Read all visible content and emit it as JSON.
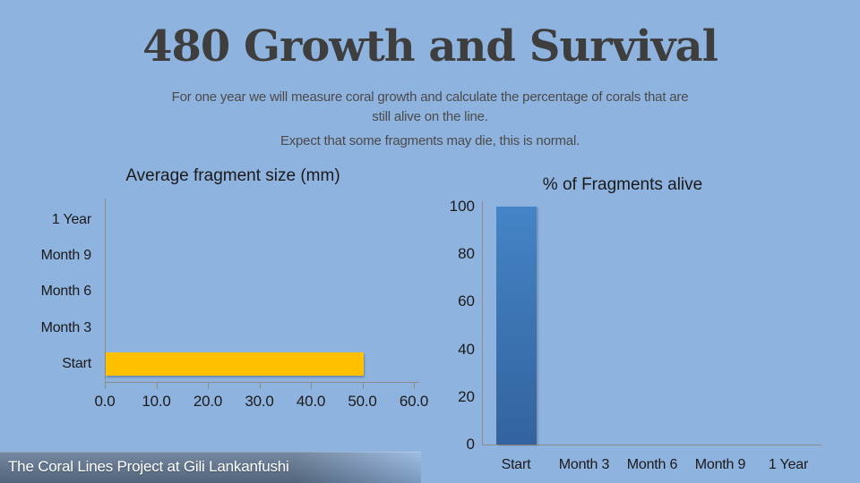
{
  "slide": {
    "title": "480 Growth and Survival",
    "subtitle": [
      "For one year we will measure coral growth and calculate the percentage of corals that are",
      "still alive on the line.",
      "Expect that some fragments may die, this is normal."
    ],
    "footer": "The Coral Lines Project at Gili Lankanfushi",
    "colors": {
      "background": "#8FB3DF",
      "title_text": "#3E3E3E",
      "body_text": "#4A4A4A",
      "banner": "#5F7590",
      "axis": "#8C8C8C"
    }
  },
  "chart_data": [
    {
      "id": "growth",
      "type": "bar",
      "orientation": "horizontal",
      "title": "Average fragment size (mm)",
      "categories": [
        "Start",
        "Month 3",
        "Month 6",
        "Month 9",
        "1 Year"
      ],
      "values": [
        50,
        0,
        0,
        0,
        0
      ],
      "category_order_top_to_bottom": [
        "1 Year",
        "Month 9",
        "Month 6",
        "Month 3",
        "Start"
      ],
      "value_axis": {
        "min": 0,
        "max": 60,
        "step": 10,
        "tick_labels": [
          "0.0",
          "10.0",
          "20.0",
          "30.0",
          "40.0",
          "50.0",
          "60.0"
        ]
      },
      "bar_color": "#FFC000",
      "grid": false,
      "legend": false
    },
    {
      "id": "alive",
      "type": "bar",
      "orientation": "vertical",
      "title": "% of Fragments alive",
      "categories": [
        "Start",
        "Month 3",
        "Month 6",
        "Month 9",
        "1 Year"
      ],
      "values": [
        100,
        0,
        0,
        0,
        0
      ],
      "value_axis": {
        "min": 0,
        "max": 100,
        "step": 20,
        "tick_labels": [
          "0",
          "20",
          "40",
          "60",
          "80",
          "100"
        ]
      },
      "bar_gradient_top": "#4484C6",
      "bar_gradient_bottom": "#33639E",
      "grid": false,
      "legend": false
    }
  ]
}
